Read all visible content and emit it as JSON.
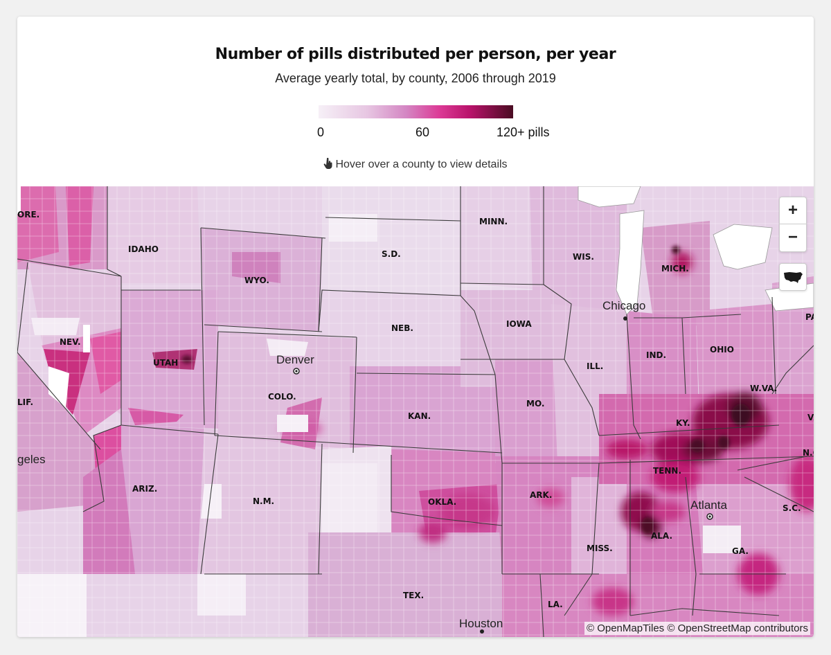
{
  "title": "Number of pills distributed per person, per year",
  "subtitle": "Average yearly total, by county, 2006 through 2019",
  "legend": {
    "min_label": "0",
    "mid_label": "60",
    "max_label": "120+ pills",
    "min_value": 0,
    "mid_value": 60,
    "max_value": 120,
    "colors": [
      "#f6f0f7",
      "#e7c6e2",
      "#d486c3",
      "#dc3a96",
      "#b8126a",
      "#4a0c22"
    ]
  },
  "hint": "Hover over a county to view details",
  "map_controls": {
    "zoom_in": "+",
    "zoom_out": "−"
  },
  "attribution": "© OpenMapTiles © OpenStreetMap contributors",
  "state_labels": [
    "ORE.",
    "IDAHO",
    "WYO.",
    "S.D.",
    "MINN.",
    "WIS.",
    "MICH.",
    "NEB.",
    "IOWA",
    "NEV.",
    "UTAH",
    "COLO.",
    "KAN.",
    "MO.",
    "ILL.",
    "IND.",
    "OHIO",
    "W.VA.",
    "KY.",
    "TENN.",
    "ARIZ.",
    "N.M.",
    "OKLA.",
    "ARK.",
    "MISS.",
    "ALA.",
    "GA.",
    "S.C.",
    "TEX.",
    "LA.",
    "LIF.",
    "PA",
    "VA",
    "N.C."
  ],
  "city_labels": [
    "Chicago",
    "Denver",
    "Atlanta",
    "Houston",
    "geles"
  ],
  "colors": {
    "background": "#ffffff",
    "water": "#ffffff",
    "border": "#3a3a3a"
  }
}
